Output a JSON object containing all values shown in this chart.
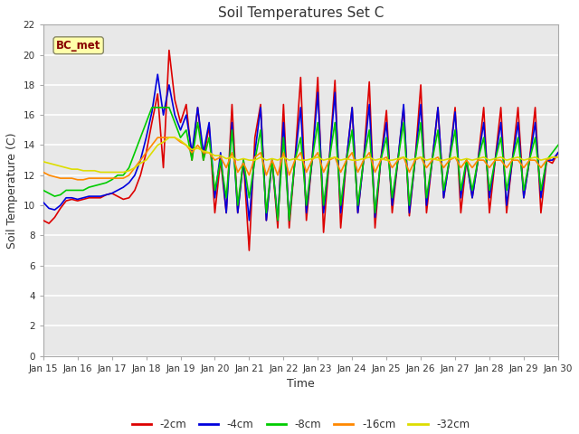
{
  "title": "Soil Temperatures Set C",
  "xlabel": "Time",
  "ylabel": "Soil Temperature (C)",
  "ylim": [
    0,
    22
  ],
  "yticks": [
    0,
    2,
    4,
    6,
    8,
    10,
    12,
    14,
    16,
    18,
    20,
    22
  ],
  "annotation_text": "BC_met",
  "series_colors": {
    "-2cm": "#dd0000",
    "-4cm": "#0000dd",
    "-8cm": "#00cc00",
    "-16cm": "#ff8800",
    "-32cm": "#dddd00"
  },
  "legend_labels": [
    "-2cm",
    "-4cm",
    "-8cm",
    "-16cm",
    "-32cm"
  ],
  "x_tick_labels": [
    "Jan 15",
    "Jan 16",
    "Jan 17",
    "Jan 18",
    "Jan 19",
    "Jan 20",
    "Jan 21",
    "Jan 22",
    "Jan 23",
    "Jan 24",
    "Jan 25",
    "Jan 26",
    "Jan 27",
    "Jan 28",
    "Jan 29",
    "Jan 30"
  ],
  "num_days": 15,
  "data_2cm": [
    9.0,
    8.8,
    9.2,
    9.8,
    10.3,
    10.4,
    10.3,
    10.4,
    10.5,
    10.5,
    10.5,
    10.7,
    10.8,
    10.6,
    10.4,
    10.5,
    11.0,
    12.0,
    13.5,
    15.5,
    17.4,
    12.5,
    20.3,
    17.0,
    15.5,
    16.7,
    13.0,
    16.5,
    13.0,
    15.3,
    9.5,
    13.0,
    9.5,
    16.7,
    9.5,
    13.0,
    7.0,
    14.5,
    16.7,
    9.0,
    13.0,
    8.5,
    16.7,
    8.5,
    13.0,
    18.5,
    9.0,
    13.0,
    18.5,
    8.2,
    13.0,
    18.3,
    8.5,
    13.0,
    16.5,
    9.5,
    13.0,
    18.2,
    8.5,
    13.0,
    16.3,
    9.5,
    13.0,
    16.5,
    9.3,
    13.0,
    18.0,
    9.5,
    13.0,
    16.5,
    10.5,
    13.0,
    16.5,
    9.5,
    13.0,
    10.5,
    13.0,
    16.5,
    9.5,
    13.0,
    16.5,
    9.5,
    13.0,
    16.5,
    10.5,
    13.0,
    16.5,
    9.5,
    13.0,
    12.8,
    13.5
  ],
  "data_4cm": [
    10.2,
    9.8,
    9.7,
    10.0,
    10.5,
    10.5,
    10.4,
    10.5,
    10.6,
    10.6,
    10.6,
    10.7,
    10.8,
    11.0,
    11.2,
    11.5,
    12.0,
    13.0,
    14.5,
    16.2,
    18.7,
    16.0,
    18.0,
    16.0,
    15.0,
    16.0,
    13.5,
    16.5,
    13.5,
    15.5,
    10.5,
    13.5,
    9.5,
    15.5,
    9.5,
    13.0,
    9.0,
    13.5,
    16.5,
    9.0,
    13.0,
    9.0,
    15.5,
    9.0,
    13.0,
    16.5,
    9.5,
    13.0,
    17.5,
    9.5,
    13.0,
    17.5,
    9.5,
    13.0,
    16.5,
    9.5,
    13.0,
    16.7,
    9.2,
    13.0,
    15.5,
    10.0,
    13.0,
    16.7,
    9.5,
    13.0,
    16.7,
    10.0,
    13.0,
    16.5,
    10.5,
    13.0,
    16.2,
    10.5,
    13.0,
    10.5,
    13.0,
    15.5,
    10.5,
    13.0,
    15.5,
    10.0,
    13.0,
    15.5,
    10.5,
    13.0,
    15.5,
    10.5,
    13.0,
    13.0,
    13.5
  ],
  "data_8cm": [
    11.0,
    10.8,
    10.6,
    10.7,
    11.0,
    11.0,
    11.0,
    11.0,
    11.2,
    11.3,
    11.4,
    11.5,
    11.7,
    12.0,
    12.0,
    12.5,
    13.5,
    14.5,
    15.5,
    16.5,
    16.5,
    16.5,
    16.5,
    15.5,
    14.5,
    15.0,
    13.0,
    15.5,
    13.0,
    14.5,
    11.0,
    13.0,
    10.5,
    15.0,
    10.0,
    13.0,
    10.5,
    13.0,
    15.0,
    9.5,
    13.0,
    9.0,
    14.5,
    9.0,
    13.0,
    14.5,
    10.0,
    13.0,
    15.5,
    10.0,
    13.0,
    15.5,
    10.0,
    13.0,
    15.0,
    10.0,
    13.0,
    15.0,
    9.5,
    13.0,
    14.5,
    10.5,
    13.0,
    15.5,
    10.0,
    13.0,
    15.5,
    10.5,
    13.0,
    15.0,
    11.0,
    13.0,
    15.0,
    11.0,
    13.0,
    11.0,
    13.0,
    14.5,
    11.0,
    13.0,
    14.5,
    11.0,
    13.0,
    14.5,
    11.0,
    13.0,
    14.5,
    11.0,
    13.0,
    13.5,
    14.0
  ],
  "data_16cm": [
    12.2,
    12.0,
    11.9,
    11.8,
    11.8,
    11.8,
    11.7,
    11.7,
    11.8,
    11.8,
    11.8,
    11.8,
    11.8,
    11.8,
    11.8,
    12.0,
    12.5,
    13.0,
    13.5,
    14.0,
    14.5,
    14.5,
    14.5,
    14.5,
    14.2,
    14.0,
    13.5,
    14.0,
    13.5,
    13.5,
    13.0,
    13.2,
    12.5,
    13.5,
    12.2,
    12.8,
    12.0,
    13.2,
    13.5,
    12.0,
    13.0,
    12.0,
    13.5,
    12.0,
    13.0,
    13.5,
    12.2,
    13.0,
    13.5,
    12.2,
    13.0,
    13.2,
    12.2,
    13.0,
    13.5,
    12.2,
    13.0,
    13.5,
    12.2,
    13.0,
    13.2,
    12.5,
    13.0,
    13.2,
    12.2,
    13.0,
    13.2,
    12.5,
    13.0,
    13.2,
    12.5,
    13.0,
    13.2,
    12.5,
    13.0,
    12.5,
    13.0,
    13.0,
    12.5,
    13.0,
    13.0,
    12.5,
    13.0,
    13.0,
    12.5,
    13.0,
    13.0,
    12.5,
    13.0,
    13.2,
    13.2
  ],
  "data_32cm": [
    12.9,
    12.8,
    12.7,
    12.6,
    12.5,
    12.4,
    12.4,
    12.3,
    12.3,
    12.3,
    12.2,
    12.2,
    12.2,
    12.2,
    12.2,
    12.3,
    12.5,
    12.8,
    13.0,
    13.5,
    14.0,
    14.2,
    14.5,
    14.5,
    14.3,
    14.0,
    13.7,
    13.8,
    13.6,
    13.5,
    13.3,
    13.3,
    13.1,
    13.2,
    13.0,
    13.1,
    13.0,
    13.0,
    13.2,
    13.0,
    13.1,
    13.0,
    13.2,
    13.0,
    13.1,
    13.0,
    13.0,
    13.1,
    13.2,
    13.0,
    13.1,
    13.2,
    13.0,
    13.1,
    13.0,
    13.0,
    13.1,
    13.2,
    13.0,
    13.1,
    13.0,
    13.0,
    13.1,
    13.2,
    13.0,
    13.1,
    13.2,
    13.0,
    13.1,
    13.0,
    13.0,
    13.1,
    13.2,
    13.0,
    13.1,
    13.0,
    13.1,
    13.2,
    13.0,
    13.1,
    13.2,
    13.0,
    13.1,
    13.2,
    13.0,
    13.1,
    13.2,
    13.0,
    13.1,
    13.2,
    13.2
  ]
}
